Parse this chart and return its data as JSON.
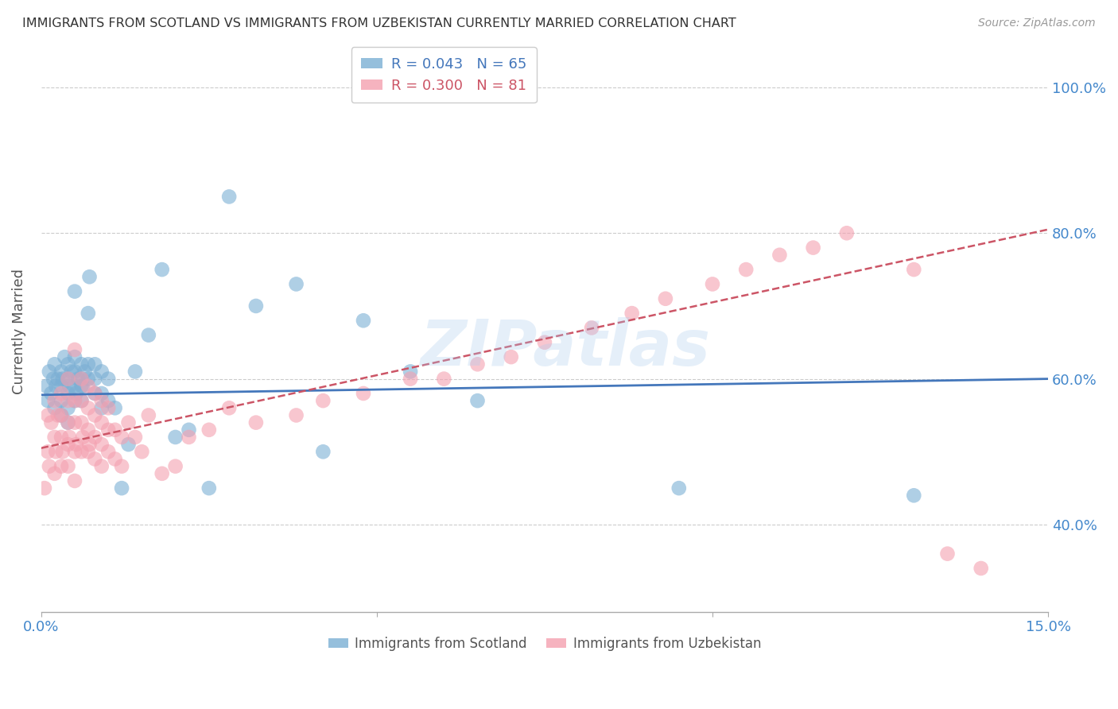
{
  "title": "IMMIGRANTS FROM SCOTLAND VS IMMIGRANTS FROM UZBEKISTAN CURRENTLY MARRIED CORRELATION CHART",
  "source": "Source: ZipAtlas.com",
  "ylabel": "Currently Married",
  "xlim": [
    0.0,
    0.15
  ],
  "ylim": [
    0.28,
    1.05
  ],
  "scotland_color": "#7BAFD4",
  "uzbekistan_color": "#F4A0B0",
  "scotland_R": 0.043,
  "scotland_N": 65,
  "uzbekistan_R": 0.3,
  "uzbekistan_N": 81,
  "scotland_line_color": "#4477BB",
  "uzbekistan_line_color": "#CC5566",
  "background_color": "#FFFFFF",
  "grid_color": "#CCCCCC",
  "axis_label_color": "#4488CC",
  "title_color": "#333333",
  "watermark": "ZIPatlas",
  "ytick_vals": [
    0.4,
    0.6,
    0.8,
    1.0
  ],
  "ytick_labels": [
    "40.0%",
    "60.0%",
    "80.0%",
    "100.0%"
  ],
  "xtick_vals": [
    0.0,
    0.05,
    0.1,
    0.15
  ],
  "xtick_labels": [
    "0.0%",
    "",
    "",
    "15.0%"
  ],
  "scotland_x": [
    0.0008,
    0.001,
    0.0012,
    0.0015,
    0.0018,
    0.002,
    0.002,
    0.0022,
    0.0025,
    0.003,
    0.003,
    0.003,
    0.003,
    0.0032,
    0.0035,
    0.004,
    0.004,
    0.004,
    0.004,
    0.004,
    0.0042,
    0.0045,
    0.005,
    0.005,
    0.005,
    0.005,
    0.005,
    0.0052,
    0.0055,
    0.006,
    0.006,
    0.006,
    0.006,
    0.0062,
    0.0065,
    0.007,
    0.007,
    0.007,
    0.0072,
    0.008,
    0.008,
    0.008,
    0.009,
    0.009,
    0.009,
    0.01,
    0.01,
    0.011,
    0.012,
    0.013,
    0.014,
    0.016,
    0.018,
    0.02,
    0.022,
    0.025,
    0.028,
    0.032,
    0.038,
    0.042,
    0.048,
    0.055,
    0.065,
    0.095,
    0.13
  ],
  "scotland_y": [
    0.59,
    0.57,
    0.61,
    0.58,
    0.6,
    0.56,
    0.62,
    0.59,
    0.6,
    0.57,
    0.59,
    0.61,
    0.55,
    0.6,
    0.63,
    0.56,
    0.58,
    0.6,
    0.62,
    0.54,
    0.59,
    0.61,
    0.57,
    0.59,
    0.61,
    0.63,
    0.72,
    0.58,
    0.6,
    0.57,
    0.59,
    0.6,
    0.62,
    0.59,
    0.61,
    0.6,
    0.62,
    0.69,
    0.74,
    0.58,
    0.6,
    0.62,
    0.56,
    0.58,
    0.61,
    0.57,
    0.6,
    0.56,
    0.45,
    0.51,
    0.61,
    0.66,
    0.75,
    0.52,
    0.53,
    0.45,
    0.85,
    0.7,
    0.73,
    0.5,
    0.68,
    0.61,
    0.57,
    0.45,
    0.44
  ],
  "uzbekistan_x": [
    0.0005,
    0.001,
    0.001,
    0.0012,
    0.0015,
    0.002,
    0.002,
    0.002,
    0.0022,
    0.0025,
    0.003,
    0.003,
    0.003,
    0.003,
    0.0032,
    0.004,
    0.004,
    0.004,
    0.004,
    0.004,
    0.0042,
    0.005,
    0.005,
    0.005,
    0.005,
    0.005,
    0.0052,
    0.006,
    0.006,
    0.006,
    0.006,
    0.0062,
    0.007,
    0.007,
    0.007,
    0.007,
    0.0072,
    0.008,
    0.008,
    0.008,
    0.008,
    0.009,
    0.009,
    0.009,
    0.009,
    0.01,
    0.01,
    0.01,
    0.011,
    0.011,
    0.012,
    0.012,
    0.013,
    0.014,
    0.015,
    0.016,
    0.018,
    0.02,
    0.022,
    0.025,
    0.028,
    0.032,
    0.038,
    0.042,
    0.048,
    0.055,
    0.06,
    0.065,
    0.07,
    0.075,
    0.082,
    0.088,
    0.093,
    0.1,
    0.105,
    0.11,
    0.115,
    0.12,
    0.13,
    0.135,
    0.14
  ],
  "uzbekistan_y": [
    0.45,
    0.5,
    0.55,
    0.48,
    0.54,
    0.47,
    0.52,
    0.57,
    0.5,
    0.55,
    0.48,
    0.52,
    0.55,
    0.58,
    0.5,
    0.48,
    0.51,
    0.54,
    0.57,
    0.6,
    0.52,
    0.46,
    0.5,
    0.54,
    0.57,
    0.64,
    0.51,
    0.5,
    0.54,
    0.57,
    0.6,
    0.52,
    0.5,
    0.53,
    0.56,
    0.59,
    0.51,
    0.49,
    0.52,
    0.55,
    0.58,
    0.48,
    0.51,
    0.54,
    0.57,
    0.5,
    0.53,
    0.56,
    0.49,
    0.53,
    0.48,
    0.52,
    0.54,
    0.52,
    0.5,
    0.55,
    0.47,
    0.48,
    0.52,
    0.53,
    0.56,
    0.54,
    0.55,
    0.57,
    0.58,
    0.6,
    0.6,
    0.62,
    0.63,
    0.65,
    0.67,
    0.69,
    0.71,
    0.73,
    0.75,
    0.77,
    0.78,
    0.8,
    0.75,
    0.36,
    0.34
  ]
}
